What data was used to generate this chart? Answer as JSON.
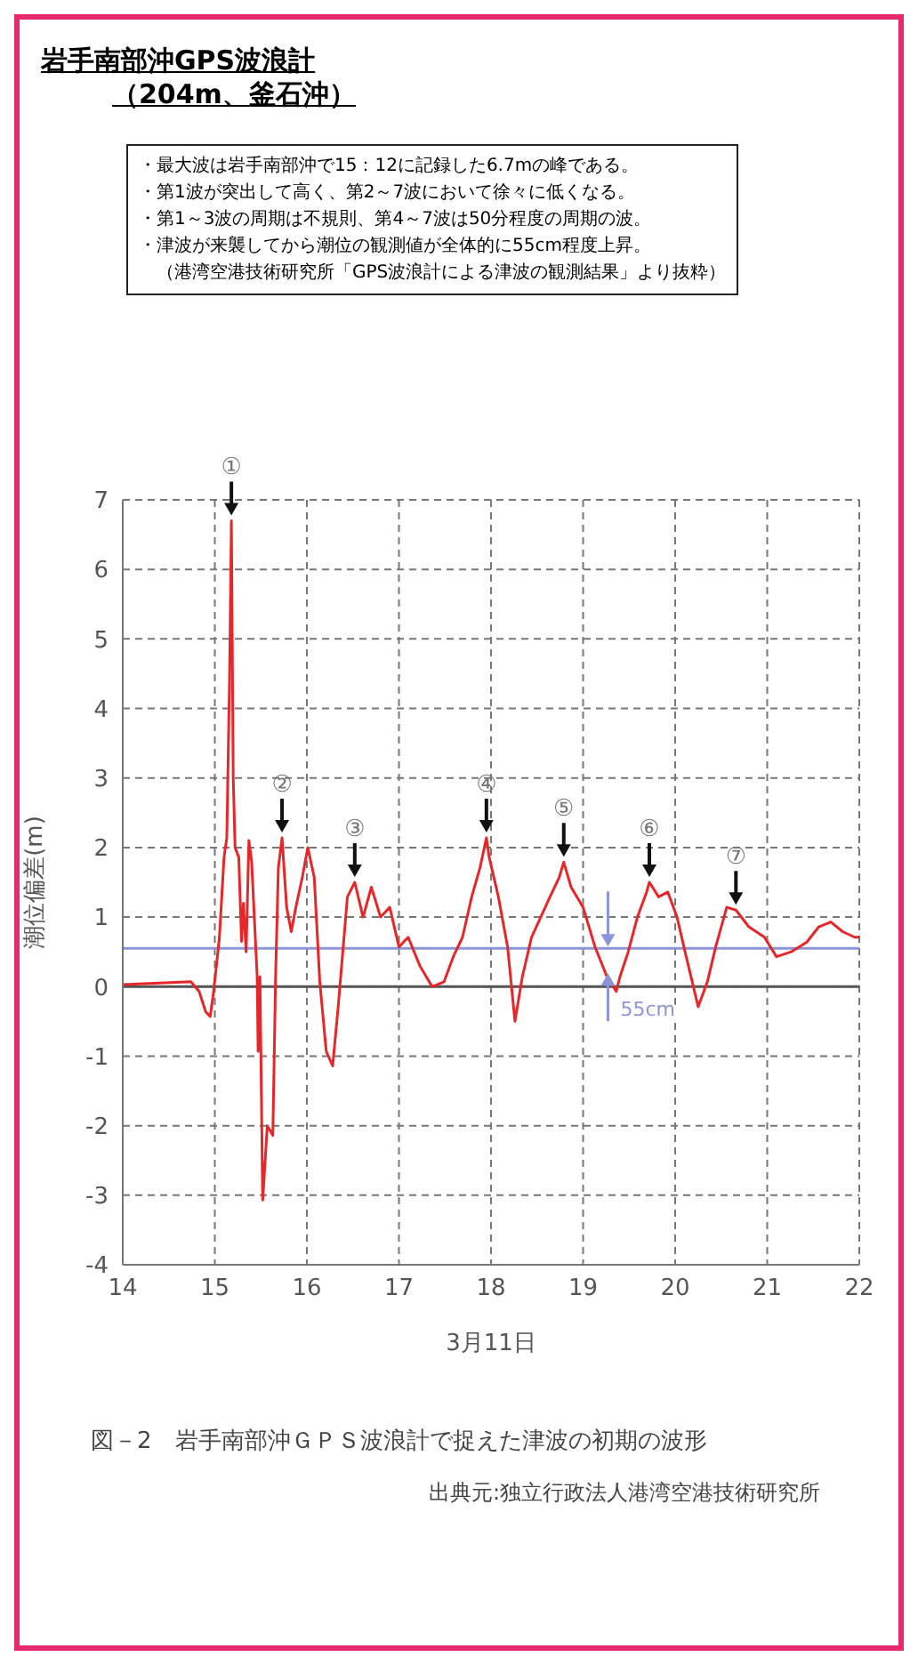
{
  "chart_data": {
    "type": "line",
    "title": "岩手南部沖GPS波浪計",
    "subtitle": "（204m、釜石沖）",
    "xlabel": "3月11日",
    "ylabel": "潮位偏差(m)",
    "x": [
      14.0,
      14.74,
      14.83,
      14.9,
      14.95,
      14.98,
      15.01,
      15.05,
      15.1,
      15.13,
      15.16,
      15.18,
      15.2,
      15.22,
      15.26,
      15.29,
      15.31,
      15.34,
      15.37,
      15.4,
      15.46,
      15.47,
      15.49,
      15.52,
      15.57,
      15.63,
      15.66,
      15.69,
      15.73,
      15.78,
      15.83,
      15.88,
      15.95,
      16.01,
      16.08,
      16.14,
      16.21,
      16.28,
      16.34,
      16.44,
      16.52,
      16.61,
      16.7,
      16.8,
      16.9,
      17.0,
      17.1,
      17.23,
      17.36,
      17.49,
      17.59,
      17.69,
      17.79,
      17.88,
      17.95,
      17.98,
      18.08,
      18.18,
      18.26,
      18.34,
      18.44,
      18.54,
      18.64,
      18.74,
      18.79,
      18.87,
      19.0,
      19.13,
      19.26,
      19.36,
      19.4,
      19.49,
      19.59,
      19.69,
      19.72,
      19.82,
      19.92,
      20.02,
      20.12,
      20.25,
      20.35,
      20.44,
      20.56,
      20.66,
      20.8,
      20.97,
      21.1,
      21.26,
      21.43,
      21.56,
      21.69,
      21.82,
      21.95,
      22.0
    ],
    "series": [
      {
        "color": "#e8262a",
        "values": [
          0.03,
          0.07,
          -0.07,
          -0.36,
          -0.43,
          -0.14,
          0.21,
          0.71,
          1.86,
          2.14,
          4.43,
          6.7,
          3.0,
          2.0,
          1.86,
          0.65,
          1.2,
          0.5,
          2.1,
          1.8,
          0.14,
          -0.93,
          0.14,
          -3.07,
          -2.0,
          -2.14,
          0.14,
          1.71,
          2.14,
          1.14,
          0.79,
          1.14,
          1.57,
          2.0,
          1.57,
          0.07,
          -0.93,
          -1.14,
          -0.29,
          1.29,
          1.5,
          1.0,
          1.43,
          1.0,
          1.14,
          0.57,
          0.71,
          0.29,
          0.0,
          0.07,
          0.43,
          0.71,
          1.29,
          1.71,
          2.14,
          1.86,
          1.29,
          0.57,
          -0.5,
          0.14,
          0.71,
          1.0,
          1.29,
          1.57,
          1.79,
          1.43,
          1.14,
          0.57,
          0.14,
          -0.07,
          0.14,
          0.5,
          1.0,
          1.36,
          1.5,
          1.29,
          1.36,
          1.0,
          0.43,
          -0.29,
          0.07,
          0.57,
          1.14,
          1.1,
          0.86,
          0.71,
          0.43,
          0.5,
          0.64,
          0.86,
          0.93,
          0.79,
          0.71,
          0.71
        ]
      }
    ],
    "xlim": [
      14,
      22
    ],
    "xticks": [
      14,
      15,
      16,
      17,
      18,
      19,
      20,
      21,
      22
    ],
    "ylim": [
      -4,
      7
    ],
    "yticks": [
      -4,
      -3,
      -2,
      -1,
      0,
      1,
      2,
      3,
      4,
      5,
      6,
      7
    ],
    "grid": true,
    "ref_lines": [
      {
        "axis": "y",
        "value": 0,
        "color": "#555555"
      },
      {
        "axis": "y",
        "value": 0.55,
        "color": "#8a96d8"
      }
    ],
    "annotations": [
      "・最大波は岩手南部沖で15：12に記録した6.7mの峰である。",
      "・第1波が突出して高く、第2～7波において徐々に低くなる。",
      "・第1～3波の周期は不規則、第4～7波は50分程度の周期の波。",
      "・津波が来襲してから潮位の観測値が全体的に55cm程度上昇。",
      "（港湾空港技術研究所「GPS波浪計による津波の観測結果」より抜粋）",
      "図－2　岩手南部沖ＧＰＳ波浪計で捉えた津波の初期の波形",
      "出典元:独立行政法人港湾空港技術研究所",
      {
        "text": "①",
        "x": 15.18,
        "y": 6.7
      },
      {
        "text": "②",
        "x": 15.73,
        "y": 2.14
      },
      {
        "text": "③",
        "x": 16.52,
        "y": 1.5
      },
      {
        "text": "④",
        "x": 17.95,
        "y": 2.14
      },
      {
        "text": "⑤",
        "x": 18.79,
        "y": 1.79
      },
      {
        "text": "⑥",
        "x": 19.72,
        "y": 1.5
      },
      {
        "text": "⑦",
        "x": 20.66,
        "y": 1.1
      },
      {
        "text": "55cm",
        "x": 19.27,
        "y": 0.55
      }
    ]
  }
}
